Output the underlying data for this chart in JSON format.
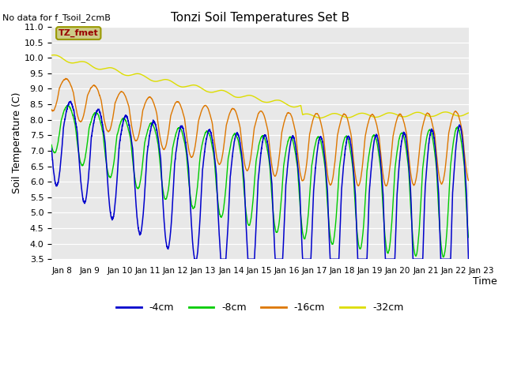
{
  "title": "Tonzi Soil Temperatures Set B",
  "no_data_text": "No data for f_Tsoil_2cmB",
  "xlabel": "Time",
  "ylabel": "Soil Temperature (C)",
  "ylim": [
    3.5,
    11.0
  ],
  "yticks": [
    3.5,
    4.0,
    4.5,
    5.0,
    5.5,
    6.0,
    6.5,
    7.0,
    7.5,
    8.0,
    8.5,
    9.0,
    9.5,
    10.0,
    10.5,
    11.0
  ],
  "xtick_labels": [
    "Jan 8",
    "Jan 9",
    "Jan 10",
    "Jan 11",
    "Jan 12",
    "Jan 13",
    "Jan 14",
    "Jan 15",
    "Jan 16",
    "Jan 17",
    "Jan 18",
    "Jan 19",
    "Jan 20",
    "Jan 21",
    "Jan 22",
    "Jan 23"
  ],
  "colors": {
    "4cm": "#0000cc",
    "8cm": "#00cc00",
    "16cm": "#dd7700",
    "32cm": "#dddd00"
  },
  "legend_labels": [
    "-4cm",
    "-8cm",
    "-16cm",
    "-32cm"
  ],
  "tz_fmet_label": "TZ_fmet",
  "tz_fmet_fgcolor": "#990000",
  "tz_fmet_bgcolor": "#cccc88",
  "tz_fmet_edgecolor": "#999900",
  "plot_bg": "#e8e8e8",
  "n_per_day": 480,
  "n_days": 15
}
